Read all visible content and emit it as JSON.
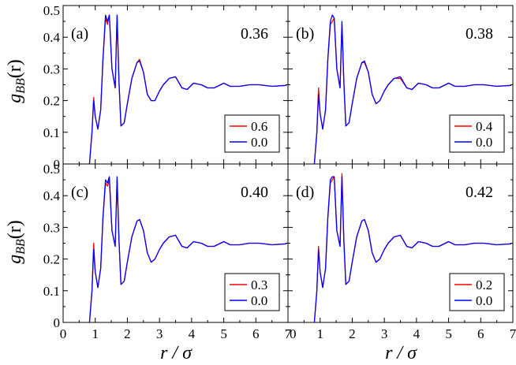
{
  "figure": {
    "ylabel_main": "g",
    "ylabel_sub": "BB",
    "ylabel_arg": "(r)",
    "xlabel": "r / σ"
  },
  "chart_data": [
    {
      "type": "line",
      "panel_label": "(a)",
      "annotation": "0.36",
      "xlim": [
        0,
        7
      ],
      "ylim": [
        0,
        0.5
      ],
      "x_ticks": [
        0,
        1,
        2,
        3,
        4,
        5,
        6,
        7
      ],
      "y_ticks": [
        0,
        0.1,
        0.2,
        0.3,
        0.4,
        0.5
      ],
      "y_tick_labels": [
        "0",
        "0.1",
        "0.2",
        "0.3",
        "0.4",
        "0.5"
      ],
      "x_tick_labels_shown": false,
      "y_tick_labels_shown": true,
      "legend_position": "bottom-right",
      "grid": false,
      "series": [
        {
          "name": "0.6",
          "color": "#ff0000",
          "x": [
            0.82,
            0.9,
            0.95,
            1.0,
            1.08,
            1.17,
            1.24,
            1.32,
            1.38,
            1.44,
            1.52,
            1.62,
            1.68,
            1.74,
            1.8,
            1.9,
            2.0,
            2.14,
            2.3,
            2.38,
            2.5,
            2.62,
            2.74,
            2.86,
            3.0,
            3.12,
            3.3,
            3.5,
            3.7,
            3.86,
            4.06,
            4.3,
            4.5,
            4.7,
            5.0,
            5.2,
            5.5,
            5.8,
            6.1,
            6.5,
            6.95
          ],
          "y": [
            0,
            0.1,
            0.21,
            0.15,
            0.11,
            0.17,
            0.33,
            0.46,
            0.44,
            0.47,
            0.3,
            0.24,
            0.47,
            0.26,
            0.12,
            0.13,
            0.19,
            0.27,
            0.32,
            0.33,
            0.29,
            0.22,
            0.2,
            0.2,
            0.23,
            0.25,
            0.27,
            0.275,
            0.24,
            0.235,
            0.255,
            0.25,
            0.24,
            0.24,
            0.255,
            0.245,
            0.245,
            0.25,
            0.25,
            0.245,
            0.248
          ]
        },
        {
          "name": "0.0",
          "color": "#0000ff",
          "x": [
            0.82,
            0.9,
            0.95,
            1.0,
            1.08,
            1.17,
            1.24,
            1.32,
            1.38,
            1.44,
            1.52,
            1.62,
            1.68,
            1.74,
            1.8,
            1.9,
            2.0,
            2.14,
            2.3,
            2.38,
            2.5,
            2.62,
            2.74,
            2.86,
            3.0,
            3.12,
            3.3,
            3.5,
            3.7,
            3.86,
            4.06,
            4.3,
            4.5,
            4.7,
            5.0,
            5.2,
            5.5,
            5.8,
            6.1,
            6.5,
            6.95
          ],
          "y": [
            0,
            0.1,
            0.2,
            0.15,
            0.11,
            0.17,
            0.33,
            0.47,
            0.45,
            0.47,
            0.3,
            0.24,
            0.47,
            0.26,
            0.12,
            0.13,
            0.19,
            0.27,
            0.32,
            0.325,
            0.29,
            0.22,
            0.2,
            0.2,
            0.23,
            0.25,
            0.27,
            0.275,
            0.24,
            0.235,
            0.255,
            0.25,
            0.24,
            0.24,
            0.255,
            0.245,
            0.245,
            0.25,
            0.25,
            0.245,
            0.248
          ]
        }
      ]
    },
    {
      "type": "line",
      "panel_label": "(b)",
      "annotation": "0.38",
      "xlim": [
        0,
        7
      ],
      "ylim": [
        0,
        0.5
      ],
      "x_ticks": [
        0,
        1,
        2,
        3,
        4,
        5,
        6,
        7
      ],
      "y_ticks": [
        0,
        0.1,
        0.2,
        0.3,
        0.4,
        0.5
      ],
      "y_tick_labels": [
        "0",
        "0.1",
        "0.2",
        "0.3",
        "0.4",
        "0.5"
      ],
      "x_tick_labels_shown": false,
      "y_tick_labels_shown": false,
      "legend_position": "bottom-right",
      "grid": false,
      "series": [
        {
          "name": "0.4",
          "color": "#ff0000",
          "x": [
            0.82,
            0.9,
            0.95,
            1.0,
            1.08,
            1.17,
            1.24,
            1.32,
            1.38,
            1.44,
            1.52,
            1.62,
            1.68,
            1.74,
            1.8,
            1.9,
            2.0,
            2.14,
            2.3,
            2.38,
            2.5,
            2.62,
            2.74,
            2.86,
            3.0,
            3.12,
            3.3,
            3.5,
            3.7,
            3.86,
            4.06,
            4.3,
            4.5,
            4.7,
            5.0,
            5.2,
            5.5,
            5.8,
            6.1,
            6.5,
            6.95
          ],
          "y": [
            0,
            0.1,
            0.24,
            0.16,
            0.11,
            0.17,
            0.33,
            0.44,
            0.45,
            0.46,
            0.3,
            0.24,
            0.44,
            0.26,
            0.12,
            0.13,
            0.19,
            0.27,
            0.32,
            0.32,
            0.29,
            0.22,
            0.19,
            0.2,
            0.23,
            0.25,
            0.27,
            0.27,
            0.24,
            0.235,
            0.255,
            0.25,
            0.24,
            0.24,
            0.255,
            0.245,
            0.245,
            0.25,
            0.25,
            0.245,
            0.248
          ]
        },
        {
          "name": "0.0",
          "color": "#0000ff",
          "x": [
            0.82,
            0.9,
            0.95,
            1.0,
            1.08,
            1.17,
            1.24,
            1.32,
            1.38,
            1.44,
            1.52,
            1.62,
            1.68,
            1.74,
            1.8,
            1.9,
            2.0,
            2.14,
            2.3,
            2.38,
            2.5,
            2.62,
            2.74,
            2.86,
            3.0,
            3.12,
            3.3,
            3.5,
            3.7,
            3.86,
            4.06,
            4.3,
            4.5,
            4.7,
            5.0,
            5.2,
            5.5,
            5.8,
            6.1,
            6.5,
            6.95
          ],
          "y": [
            0,
            0.1,
            0.22,
            0.16,
            0.11,
            0.17,
            0.33,
            0.45,
            0.47,
            0.46,
            0.3,
            0.24,
            0.45,
            0.26,
            0.12,
            0.13,
            0.19,
            0.27,
            0.32,
            0.325,
            0.29,
            0.22,
            0.19,
            0.2,
            0.23,
            0.25,
            0.27,
            0.275,
            0.24,
            0.235,
            0.255,
            0.25,
            0.24,
            0.24,
            0.255,
            0.245,
            0.245,
            0.25,
            0.25,
            0.245,
            0.248
          ]
        }
      ]
    },
    {
      "type": "line",
      "panel_label": "(c)",
      "annotation": "0.40",
      "xlim": [
        0,
        7
      ],
      "ylim": [
        0,
        0.5
      ],
      "x_ticks": [
        0,
        1,
        2,
        3,
        4,
        5,
        6,
        7
      ],
      "y_ticks": [
        0,
        0.1,
        0.2,
        0.3,
        0.4,
        0.5
      ],
      "y_tick_labels": [
        "0",
        "0.1",
        "0.2",
        "0.3",
        "0.4",
        "0.5"
      ],
      "x_tick_labels_shown": true,
      "y_tick_labels_shown": true,
      "legend_position": "bottom-right",
      "grid": false,
      "series": [
        {
          "name": "0.3",
          "color": "#ff0000",
          "x": [
            0.82,
            0.9,
            0.95,
            1.0,
            1.08,
            1.17,
            1.24,
            1.32,
            1.38,
            1.44,
            1.52,
            1.62,
            1.68,
            1.74,
            1.8,
            1.9,
            2.0,
            2.14,
            2.3,
            2.38,
            2.5,
            2.62,
            2.74,
            2.86,
            3.0,
            3.12,
            3.3,
            3.5,
            3.7,
            3.86,
            4.06,
            4.3,
            4.5,
            4.7,
            5.0,
            5.2,
            5.5,
            5.8,
            6.1,
            6.5,
            6.95
          ],
          "y": [
            0,
            0.1,
            0.25,
            0.16,
            0.11,
            0.17,
            0.33,
            0.44,
            0.43,
            0.45,
            0.29,
            0.24,
            0.45,
            0.26,
            0.12,
            0.13,
            0.19,
            0.27,
            0.32,
            0.325,
            0.29,
            0.22,
            0.19,
            0.2,
            0.23,
            0.25,
            0.27,
            0.275,
            0.24,
            0.235,
            0.255,
            0.25,
            0.24,
            0.24,
            0.255,
            0.245,
            0.245,
            0.25,
            0.25,
            0.245,
            0.248
          ]
        },
        {
          "name": "0.0",
          "color": "#0000ff",
          "x": [
            0.82,
            0.9,
            0.95,
            1.0,
            1.08,
            1.17,
            1.24,
            1.32,
            1.38,
            1.44,
            1.52,
            1.62,
            1.68,
            1.74,
            1.8,
            1.9,
            2.0,
            2.14,
            2.3,
            2.38,
            2.5,
            2.62,
            2.74,
            2.86,
            3.0,
            3.12,
            3.3,
            3.5,
            3.7,
            3.86,
            4.06,
            4.3,
            4.5,
            4.7,
            5.0,
            5.2,
            5.5,
            5.8,
            6.1,
            6.5,
            6.95
          ],
          "y": [
            0,
            0.1,
            0.23,
            0.16,
            0.11,
            0.17,
            0.33,
            0.45,
            0.44,
            0.46,
            0.29,
            0.24,
            0.46,
            0.26,
            0.12,
            0.13,
            0.19,
            0.27,
            0.32,
            0.325,
            0.29,
            0.22,
            0.19,
            0.2,
            0.23,
            0.25,
            0.27,
            0.275,
            0.24,
            0.235,
            0.255,
            0.25,
            0.24,
            0.24,
            0.255,
            0.245,
            0.245,
            0.25,
            0.25,
            0.245,
            0.248
          ]
        }
      ]
    },
    {
      "type": "line",
      "panel_label": "(d)",
      "annotation": "0.42",
      "xlim": [
        0,
        7
      ],
      "ylim": [
        0,
        0.5
      ],
      "x_ticks": [
        0,
        1,
        2,
        3,
        4,
        5,
        6,
        7
      ],
      "y_ticks": [
        0,
        0.1,
        0.2,
        0.3,
        0.4,
        0.5
      ],
      "y_tick_labels": [
        "0",
        "0.1",
        "0.2",
        "0.3",
        "0.4",
        "0.5"
      ],
      "x_tick_labels_shown": true,
      "y_tick_labels_shown": false,
      "legend_position": "bottom-right",
      "grid": false,
      "series": [
        {
          "name": "0.2",
          "color": "#ff0000",
          "x": [
            0.82,
            0.9,
            0.95,
            1.0,
            1.08,
            1.17,
            1.24,
            1.32,
            1.38,
            1.44,
            1.52,
            1.62,
            1.68,
            1.74,
            1.8,
            1.9,
            2.0,
            2.14,
            2.3,
            2.38,
            2.5,
            2.62,
            2.74,
            2.86,
            3.0,
            3.12,
            3.3,
            3.5,
            3.7,
            3.86,
            4.06,
            4.3,
            4.5,
            4.7,
            5.0,
            5.2,
            5.5,
            5.8,
            6.1,
            6.5,
            6.95
          ],
          "y": [
            0,
            0.1,
            0.24,
            0.16,
            0.11,
            0.17,
            0.33,
            0.44,
            0.45,
            0.46,
            0.29,
            0.24,
            0.47,
            0.26,
            0.12,
            0.13,
            0.19,
            0.27,
            0.32,
            0.325,
            0.29,
            0.22,
            0.19,
            0.2,
            0.23,
            0.25,
            0.27,
            0.275,
            0.24,
            0.235,
            0.255,
            0.25,
            0.24,
            0.24,
            0.255,
            0.245,
            0.245,
            0.25,
            0.25,
            0.245,
            0.248
          ]
        },
        {
          "name": "0.0",
          "color": "#0000ff",
          "x": [
            0.82,
            0.9,
            0.95,
            1.0,
            1.08,
            1.17,
            1.24,
            1.32,
            1.38,
            1.44,
            1.52,
            1.62,
            1.68,
            1.74,
            1.8,
            1.9,
            2.0,
            2.14,
            2.3,
            2.38,
            2.5,
            2.62,
            2.74,
            2.86,
            3.0,
            3.12,
            3.3,
            3.5,
            3.7,
            3.86,
            4.06,
            4.3,
            4.5,
            4.7,
            5.0,
            5.2,
            5.5,
            5.8,
            6.1,
            6.5,
            6.95
          ],
          "y": [
            0,
            0.1,
            0.23,
            0.16,
            0.11,
            0.17,
            0.33,
            0.45,
            0.46,
            0.46,
            0.29,
            0.24,
            0.46,
            0.26,
            0.12,
            0.13,
            0.19,
            0.27,
            0.32,
            0.325,
            0.29,
            0.22,
            0.19,
            0.2,
            0.23,
            0.25,
            0.27,
            0.275,
            0.24,
            0.235,
            0.255,
            0.25,
            0.24,
            0.24,
            0.255,
            0.245,
            0.245,
            0.25,
            0.25,
            0.245,
            0.248
          ]
        }
      ]
    }
  ]
}
